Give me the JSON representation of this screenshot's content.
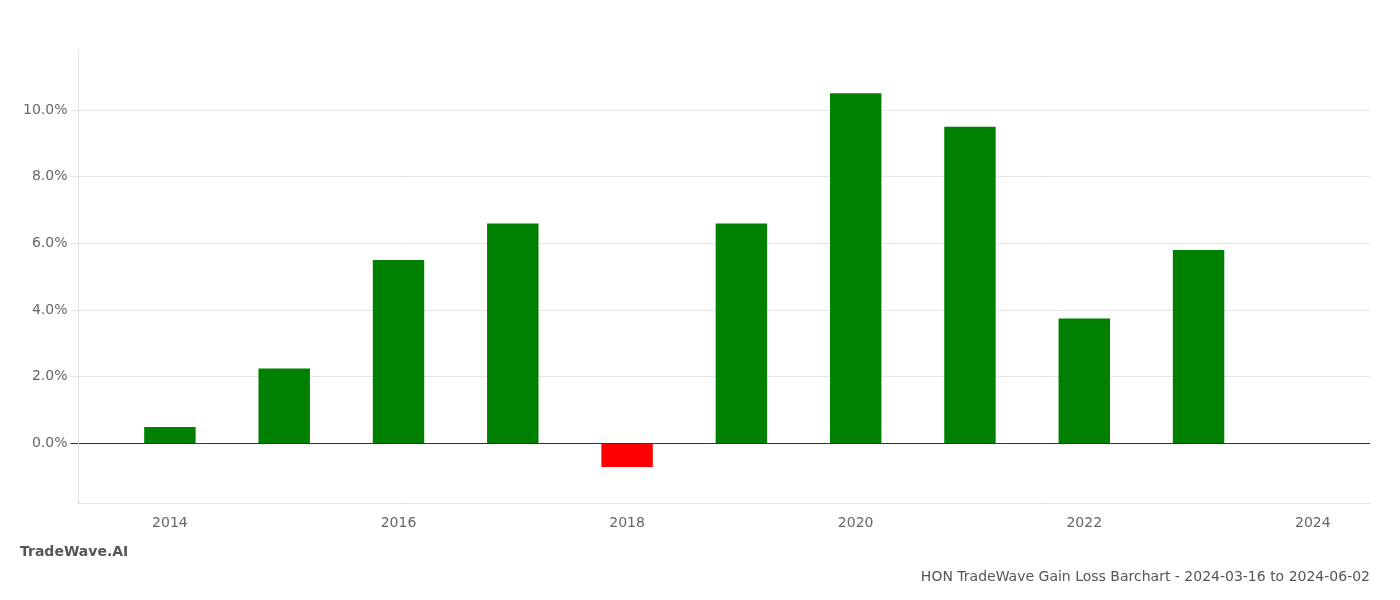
{
  "chart_data": {
    "type": "bar",
    "title": "HON TradeWave Gain Loss Barchart - 2024-03-16 to 2024-06-02",
    "annotations": [
      "TradeWave.AI"
    ],
    "x": [
      2014,
      2015,
      2016,
      2017,
      2018,
      2019,
      2020,
      2021,
      2022,
      2023
    ],
    "values": [
      0.005,
      0.0225,
      0.055,
      0.066,
      -0.007,
      0.066,
      0.105,
      0.095,
      0.0375,
      0.058
    ],
    "colors": [
      "#008000",
      "#008000",
      "#008000",
      "#008000",
      "#ff0000",
      "#008000",
      "#008000",
      "#008000",
      "#008000",
      "#008000"
    ],
    "xlim": [
      2013.2,
      2024.5
    ],
    "xticks": [
      2014,
      2016,
      2018,
      2020,
      2022,
      2024
    ],
    "ylim": [
      -0.018,
      0.118
    ],
    "yticks": [
      {
        "value": 0.0,
        "label": "0.0%"
      },
      {
        "value": 0.02,
        "label": "2.0%"
      },
      {
        "value": 0.04,
        "label": "4.0%"
      },
      {
        "value": 0.06,
        "label": "6.0%"
      },
      {
        "value": 0.08,
        "label": "8.0%"
      },
      {
        "value": 0.1,
        "label": "10.0%"
      }
    ],
    "grid": true,
    "legend": false
  }
}
